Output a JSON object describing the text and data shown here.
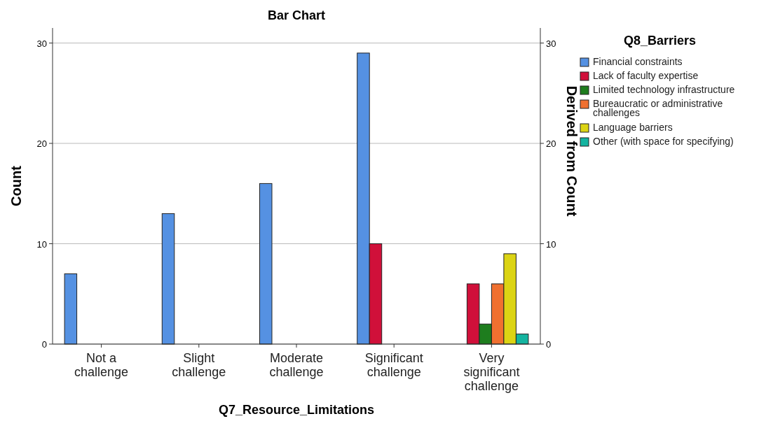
{
  "chart_data": {
    "type": "bar",
    "title": "Bar Chart",
    "xlabel": "Q7_Resource_Limitations",
    "ylabel": "Count",
    "y2label": "Derived from Count",
    "legend_title": "Q8_Barriers",
    "categories": [
      "Not a challenge",
      "Slight challenge",
      "Moderate challenge",
      "Significant challenge",
      "Very significant challenge"
    ],
    "series": [
      {
        "name": "Financial constraints",
        "color": "#5591e2",
        "values": [
          7,
          13,
          16,
          29,
          null
        ]
      },
      {
        "name": "Lack of faculty expertise",
        "color": "#d0103a",
        "values": [
          null,
          null,
          null,
          10,
          6
        ]
      },
      {
        "name": "Limited technology infrastructure",
        "color": "#1e7d1e",
        "values": [
          null,
          null,
          null,
          null,
          2
        ]
      },
      {
        "name": "Bureaucratic or administrative challenges",
        "color": "#f07030",
        "values": [
          null,
          null,
          null,
          null,
          6
        ]
      },
      {
        "name": "Language barriers",
        "color": "#dcd414",
        "values": [
          null,
          null,
          null,
          null,
          9
        ]
      },
      {
        "name": "Other (with space for specifying)",
        "color": "#14b4a0",
        "values": [
          null,
          null,
          null,
          null,
          1
        ]
      }
    ],
    "ylim": [
      0,
      31.5
    ],
    "yticks": [
      0,
      10,
      20,
      30
    ],
    "y2lim": [
      0,
      31.5
    ],
    "y2ticks": [
      0,
      10,
      20,
      30
    ],
    "grid": "y",
    "legend": "right"
  }
}
